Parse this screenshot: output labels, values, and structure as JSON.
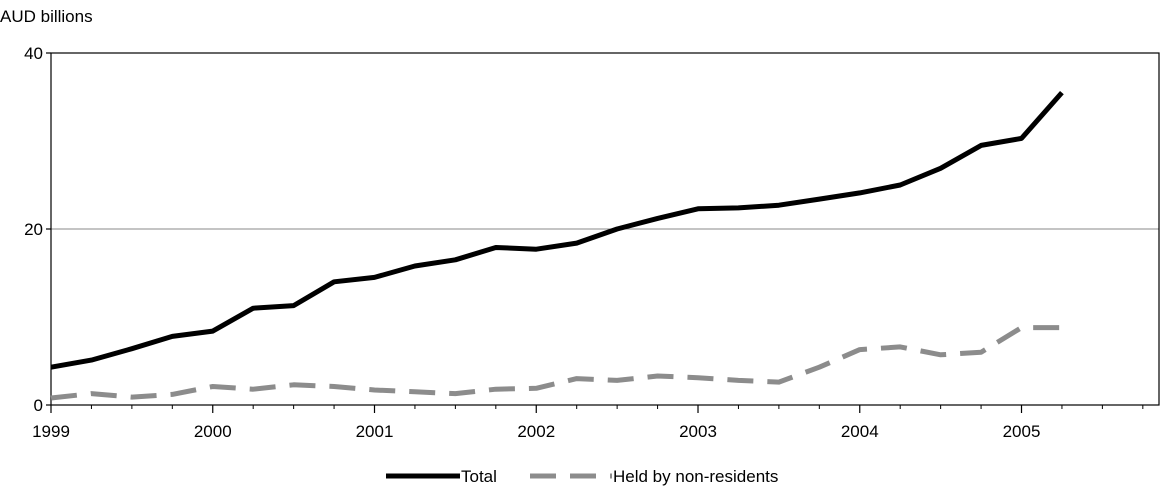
{
  "chart_data": {
    "type": "line",
    "title": "",
    "ylabel": "AUD billions",
    "xlabel": "",
    "xlim": [
      1999,
      2005.85
    ],
    "ylim": [
      0,
      40
    ],
    "yticks": [
      0,
      20,
      40
    ],
    "xticks": [
      1999,
      2000,
      2001,
      2002,
      2003,
      2004,
      2005
    ],
    "gridlines_y": [
      20
    ],
    "legend_position": "bottom-center",
    "series": [
      {
        "name": "Total",
        "color": "#000000",
        "style": "solid",
        "x": [
          1999.0,
          1999.25,
          1999.5,
          1999.75,
          2000.0,
          2000.25,
          2000.5,
          2000.75,
          2001.0,
          2001.25,
          2001.5,
          2001.75,
          2002.0,
          2002.25,
          2002.5,
          2002.75,
          2003.0,
          2003.25,
          2003.5,
          2003.75,
          2004.0,
          2004.25,
          2004.5,
          2004.75,
          2005.0,
          2005.25
        ],
        "values": [
          4.3,
          5.1,
          6.4,
          7.8,
          8.4,
          11.0,
          11.3,
          14.0,
          14.5,
          15.8,
          16.5,
          17.9,
          17.7,
          18.4,
          20.0,
          21.2,
          22.3,
          22.4,
          22.7,
          23.4,
          24.1,
          25.0,
          26.9,
          29.5,
          30.3,
          35.5
        ]
      },
      {
        "name": "Held by non-residents",
        "color": "#8c8c8c",
        "style": "dashed",
        "x": [
          1999.0,
          1999.25,
          1999.5,
          1999.75,
          2000.0,
          2000.25,
          2000.5,
          2000.75,
          2001.0,
          2001.25,
          2001.5,
          2001.75,
          2002.0,
          2002.25,
          2002.5,
          2002.75,
          2003.0,
          2003.25,
          2003.5,
          2003.75,
          2004.0,
          2004.25,
          2004.5,
          2004.75,
          2005.0,
          2005.25
        ],
        "values": [
          0.8,
          1.3,
          0.9,
          1.2,
          2.1,
          1.8,
          2.3,
          2.1,
          1.7,
          1.5,
          1.3,
          1.8,
          1.9,
          3.0,
          2.8,
          3.3,
          3.1,
          2.8,
          2.6,
          4.3,
          6.3,
          6.6,
          5.7,
          6.0,
          8.8,
          8.8
        ]
      }
    ]
  }
}
